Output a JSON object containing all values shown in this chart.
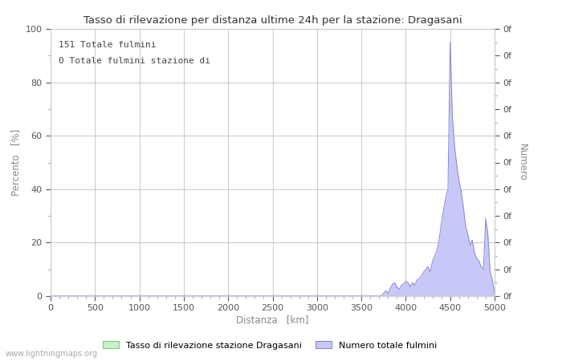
{
  "title": "Tasso di rilevazione per distanza ultime 24h per la stazione: Dragasani",
  "xlabel": "Distanza   [km]",
  "ylabel_left": "Percento   [%]",
  "ylabel_right": "Numero",
  "annotation_line1": "151 Totale fulmini",
  "annotation_line2": "0 Totale fulmini stazione di",
  "xlim": [
    0,
    5000
  ],
  "ylim": [
    0,
    100
  ],
  "xticks": [
    0,
    500,
    1000,
    1500,
    2000,
    2500,
    3000,
    3500,
    4000,
    4500,
    5000
  ],
  "yticks_left": [
    0,
    20,
    40,
    60,
    80,
    100
  ],
  "yticks_left_minor": [
    10,
    30,
    50,
    70,
    90
  ],
  "right_axis_tick_positions": [
    0,
    10,
    20,
    30,
    40,
    50,
    60,
    70,
    80,
    90,
    100
  ],
  "right_axis_tick_labels": [
    "0f",
    "0f",
    "0f",
    "0f",
    "0f",
    "0f",
    "0f",
    "0f",
    "0f",
    "0f",
    "0f"
  ],
  "grid_color": "#cccccc",
  "background_color": "#ffffff",
  "fill_color_detection": "#c8f0c8",
  "fill_color_lightning": "#c8c8f8",
  "line_color_detection": "#80cc80",
  "line_color_lightning": "#8888cc",
  "legend_label_detection": "Tasso di rilevazione stazione Dragasani",
  "legend_label_lightning": "Numero totale fulmini",
  "watermark": "www.lightningmaps.org",
  "x_data": [
    3750,
    3775,
    3800,
    3825,
    3850,
    3875,
    3900,
    3925,
    3950,
    3975,
    4000,
    4025,
    4050,
    4075,
    4100,
    4125,
    4150,
    4175,
    4200,
    4225,
    4250,
    4275,
    4300,
    4325,
    4350,
    4375,
    4400,
    4425,
    4450,
    4475,
    4500,
    4525,
    4550,
    4575,
    4600,
    4625,
    4650,
    4675,
    4700,
    4725,
    4750,
    4775,
    4800,
    4825,
    4850,
    4875,
    4900,
    4925,
    4950,
    4975,
    5000
  ],
  "y_lightning": [
    1.0,
    2.0,
    1.0,
    3.0,
    4.5,
    5.0,
    3.5,
    2.5,
    4.0,
    4.5,
    5.5,
    5.0,
    3.5,
    5.0,
    4.0,
    6.0,
    6.5,
    7.5,
    9.0,
    10.0,
    11.0,
    9.0,
    13.0,
    15.0,
    17.0,
    21.0,
    27.0,
    32.0,
    37.0,
    40.0,
    95.0,
    67.0,
    56.0,
    49.0,
    43.0,
    39.0,
    33.0,
    26.0,
    23.0,
    19.0,
    21.0,
    16.0,
    14.0,
    13.0,
    11.0,
    10.0,
    29.0,
    23.0,
    9.0,
    6.0,
    1.0
  ],
  "y_detection": [
    0,
    0,
    0,
    0,
    0,
    0,
    0,
    0,
    0,
    0,
    0,
    0,
    0,
    0,
    0,
    0,
    0,
    0,
    0,
    0,
    0,
    0,
    0,
    0,
    0,
    0,
    0,
    0,
    0,
    0,
    0,
    0,
    0,
    0,
    0,
    0,
    0,
    0,
    0,
    0,
    0,
    0,
    0,
    0,
    0,
    0,
    0,
    0,
    0,
    0,
    0
  ]
}
